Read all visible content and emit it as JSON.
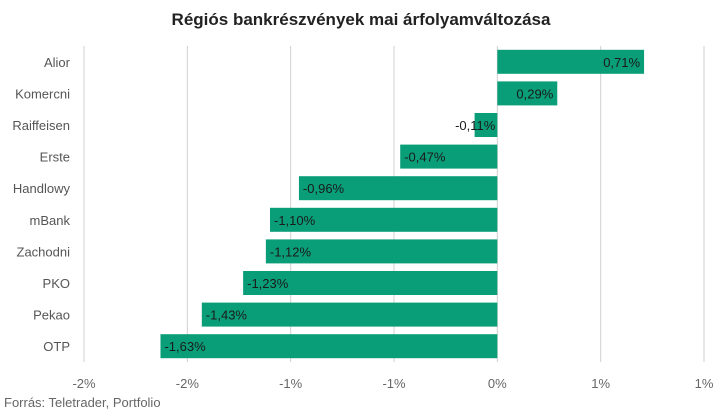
{
  "chart_data": {
    "type": "bar",
    "orientation": "horizontal",
    "title": "Régiós bankrészvények mai árfolyamváltozása",
    "source": "Forrás: Teletrader, Portfolio",
    "categories": [
      "Alior",
      "Komercni",
      "Raiffeisen",
      "Erste",
      "Handlowy",
      "mBank",
      "Zachodni",
      "PKO",
      "Pekao",
      "OTP"
    ],
    "values": [
      0.71,
      0.29,
      -0.11,
      -0.47,
      -0.96,
      -1.1,
      -1.12,
      -1.23,
      -1.43,
      -1.63
    ],
    "value_labels": [
      "0,71%",
      "0,29%",
      "-0,11%",
      "-0,47%",
      "-0,96%",
      "-1,10%",
      "-1,12%",
      "-1,23%",
      "-1,43%",
      "-1,63%"
    ],
    "x_tick_labels": [
      "-2%",
      "-2%",
      "-1%",
      "-1%",
      "0%",
      "1%",
      "1%"
    ],
    "x_tick_values": [
      -2.0,
      -1.5,
      -1.0,
      -0.5,
      0.0,
      0.5,
      1.0
    ],
    "xlim": [
      -2.0,
      1.0
    ],
    "grid": true,
    "bar_color": "#0a9e78",
    "grid_color": "#d0d0d0"
  }
}
